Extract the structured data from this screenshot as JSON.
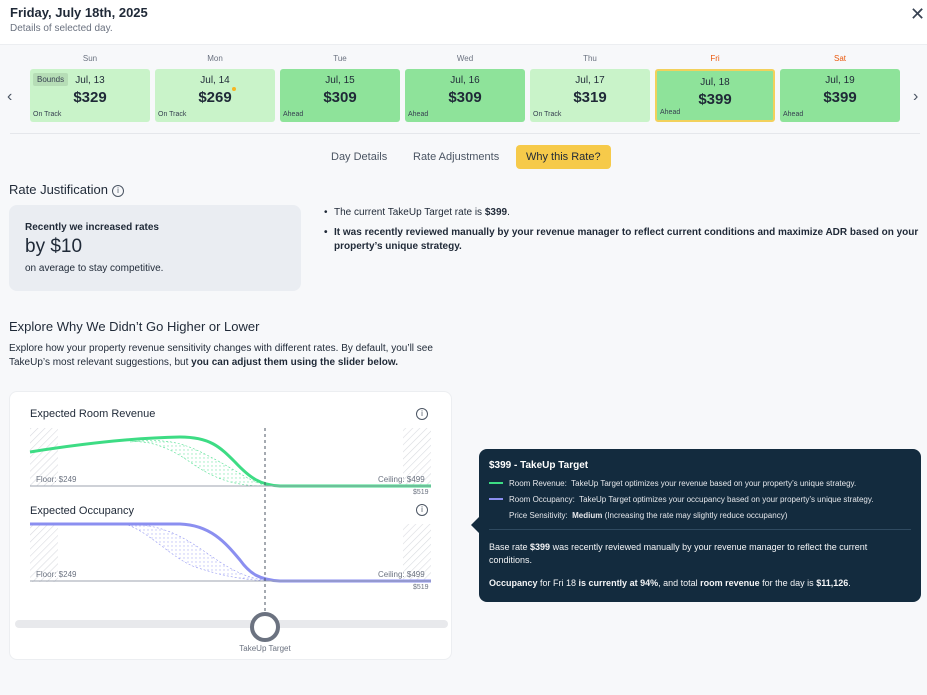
{
  "header": {
    "title": "Friday, July 18th, 2025",
    "subtitle": "Details of selected day.",
    "close_icon": "close-icon"
  },
  "week": {
    "days": [
      {
        "dow": "Sun",
        "date": "Jul, 13",
        "price": "$329",
        "status": "On Track",
        "state": "on",
        "badge": "Bounds"
      },
      {
        "dow": "Mon",
        "date": "Jul, 14",
        "price": "$269",
        "status": "On Track",
        "state": "on",
        "marker": "dot"
      },
      {
        "dow": "Tue",
        "date": "Jul, 15",
        "price": "$309",
        "status": "Ahead",
        "state": "ahead"
      },
      {
        "dow": "Wed",
        "date": "Jul, 16",
        "price": "$309",
        "status": "Ahead",
        "state": "ahead"
      },
      {
        "dow": "Thu",
        "date": "Jul, 17",
        "price": "$319",
        "status": "On Track",
        "state": "on"
      },
      {
        "dow": "Fri",
        "date": "Jul, 18",
        "price": "$399",
        "status": "Ahead",
        "state": "ahead",
        "selected": true
      },
      {
        "dow": "Sat",
        "date": "Jul, 19",
        "price": "$399",
        "status": "Ahead",
        "state": "ahead"
      }
    ]
  },
  "tabs": [
    {
      "label": "Day Details"
    },
    {
      "label": "Rate Adjustments"
    },
    {
      "label": "Why this Rate?",
      "active": true
    }
  ],
  "justification": {
    "title": "Rate Justification",
    "line1": "Recently we increased rates",
    "line2": "by $10",
    "line3": "on average to stay competitive.",
    "bullet1_pre": "The current TakeUp Target rate is ",
    "bullet1_bold": "$399",
    "bullet1_post": ".",
    "bullet2": "It was recently reviewed manually by your revenue manager to reflect current conditions and maximize ADR based on your property’s unique strategy."
  },
  "explore": {
    "title": "Explore Why We Didn’t Go Higher or Lower",
    "text_pre": "Explore how your property revenue sensitivity changes with different rates. By default, you’ll see TakeUp’s most relevant suggestions, but ",
    "text_bold": "you can adjust them using the slider below."
  },
  "charts": {
    "revenue": {
      "title": "Expected Room Revenue",
      "floor": "Floor: $249",
      "ceiling": "Ceiling: $499",
      "max": "$519",
      "color": "#3ddc84"
    },
    "occupancy": {
      "title": "Expected Occupancy",
      "floor": "Floor: $249",
      "ceiling": "Ceiling: $499",
      "max": "$519",
      "color": "#8b8ff0"
    },
    "slider_label": "TakeUp Target"
  },
  "tooltip": {
    "title": "$399 - TakeUp Target",
    "revenue_label": "Room Revenue:",
    "revenue_text": "TakeUp Target optimizes your revenue based on your property’s unique strategy.",
    "occupancy_label": "Room Occupancy:",
    "occupancy_text": "TakeUp Target optimizes your occupancy based on your property’s unique strategy.",
    "sensitivity_label": "Price Sensitivity:",
    "sensitivity_value": "Medium",
    "sensitivity_text": "(Increasing the rate may slightly reduce occupancy)",
    "base_pre": "Base rate ",
    "base_bold": "$399",
    "base_post": " was recently reviewed manually by your revenue manager to reflect the current conditions.",
    "occ_pre": "Occupancy",
    "occ_mid1": " for Fri 18 ",
    "occ_bold2": "is currently at 94%",
    "occ_mid2": ", and total ",
    "occ_bold3": "room revenue",
    "occ_mid3": " for the day is ",
    "occ_bold4": "$11,126",
    "occ_end": "."
  }
}
